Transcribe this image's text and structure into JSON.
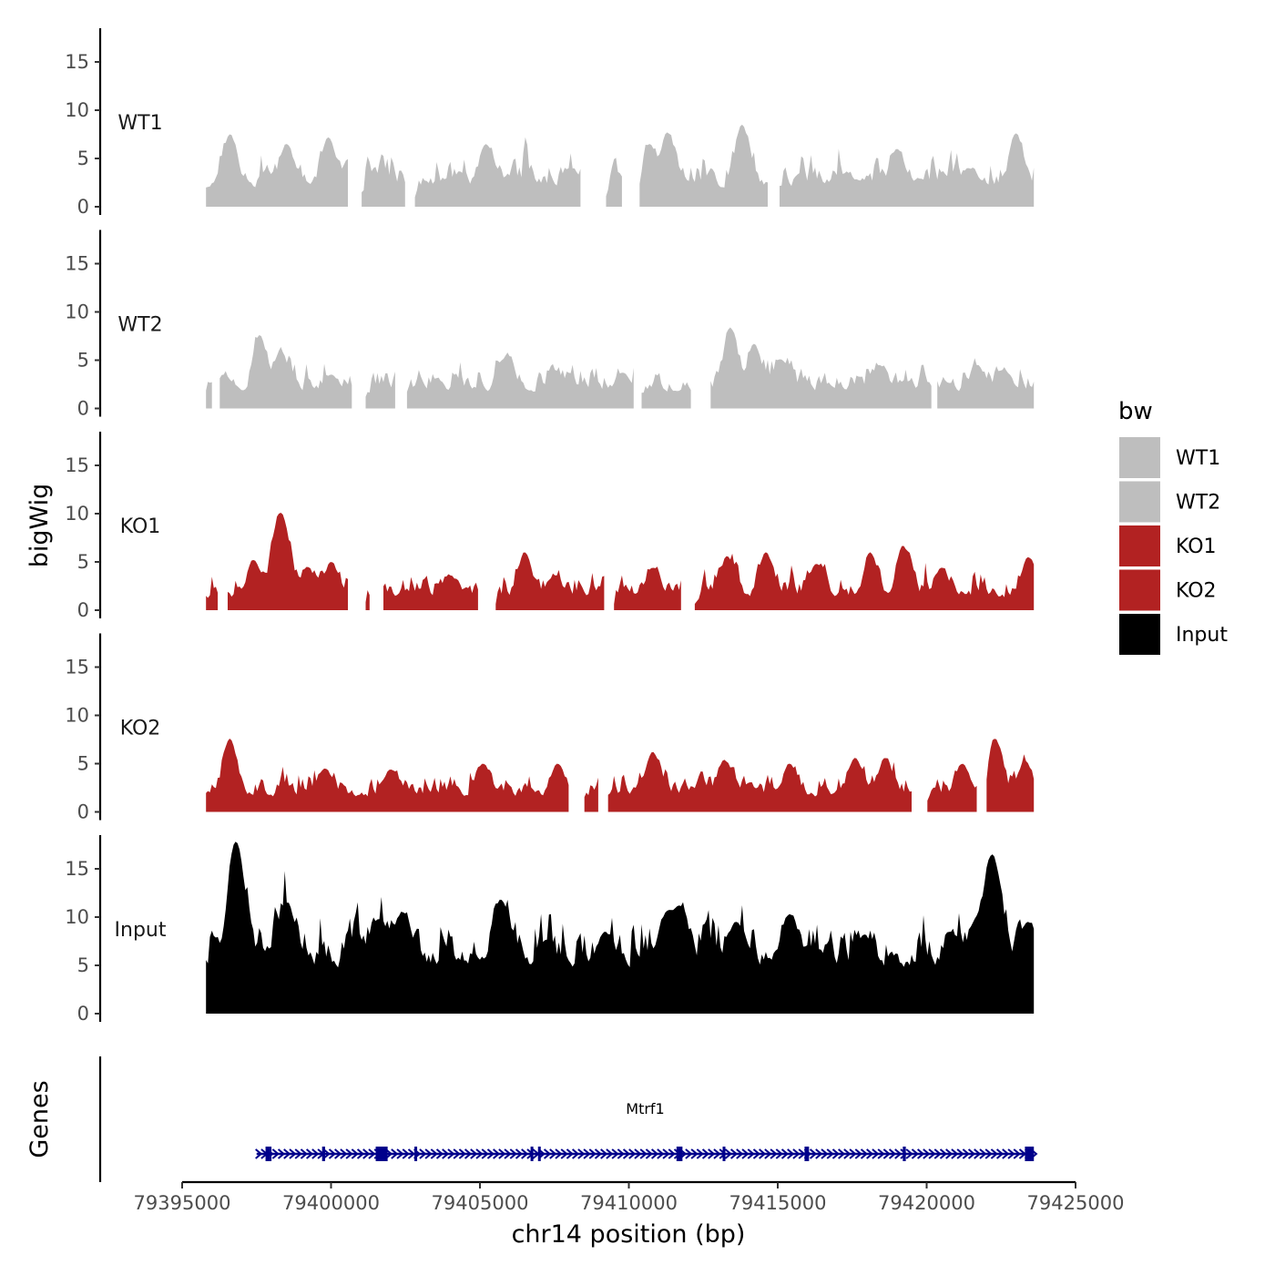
{
  "chart_data": {
    "type": "area",
    "chromosome": "chr14",
    "xlabel": "chr14 position (bp)",
    "ylabel_signal": "bigWig",
    "ylabel_genes": "Genes",
    "xlim": [
      79395000,
      79425000
    ],
    "x_ticks": [
      79395000,
      79400000,
      79405000,
      79410000,
      79415000,
      79420000,
      79425000
    ],
    "x_tick_labels": [
      "79395000",
      "79400000",
      "79405000",
      "79410000",
      "79415000",
      "79420000",
      "79425000"
    ],
    "ylim": [
      0,
      18.5
    ],
    "y_ticks": [
      0,
      5,
      10,
      15
    ],
    "y_tick_labels": [
      "0",
      "5",
      "10",
      "15"
    ],
    "x_range_data": [
      79395800,
      79423600
    ],
    "legend": {
      "title": "bw",
      "entries": [
        {
          "label": "WT1",
          "color": "#bebebe"
        },
        {
          "label": "WT2",
          "color": "#bebebe"
        },
        {
          "label": "KO1",
          "color": "#b22222"
        },
        {
          "label": "KO2",
          "color": "#b22222"
        },
        {
          "label": "Input",
          "color": "#000000"
        }
      ]
    },
    "series": [
      {
        "name": "WT1",
        "color": "#bebebe",
        "seed": 11,
        "base": 1.8,
        "noise": 2.4,
        "max": 8.5,
        "peaks": [
          [
            79396600,
            7.5
          ],
          [
            79398500,
            6.5
          ],
          [
            79399900,
            7.2
          ],
          [
            79405200,
            6.5
          ],
          [
            79408000,
            4.0
          ],
          [
            79410700,
            6.5
          ],
          [
            79411300,
            7.7
          ],
          [
            79413800,
            8.5
          ],
          [
            79417300,
            3.5
          ],
          [
            79419000,
            6.0
          ],
          [
            79421400,
            4.0
          ],
          [
            79423000,
            7.6
          ]
        ],
        "gaps": [
          [
            79400600,
            79401000
          ],
          [
            79402500,
            79402800
          ],
          [
            79408400,
            79409200
          ],
          [
            79409800,
            79410300
          ],
          [
            79414700,
            79415000
          ]
        ]
      },
      {
        "name": "WT2",
        "color": "#bebebe",
        "seed": 23,
        "base": 1.6,
        "noise": 2.3,
        "max": 8.4,
        "peaks": [
          [
            79396400,
            3.5
          ],
          [
            79397600,
            7.6
          ],
          [
            79398300,
            6.0
          ],
          [
            79400000,
            3.5
          ],
          [
            79405900,
            5.5
          ],
          [
            79407500,
            4.0
          ],
          [
            79409800,
            3.7
          ],
          [
            79413400,
            8.4
          ],
          [
            79414200,
            6.7
          ],
          [
            79415100,
            5.1
          ],
          [
            79418400,
            4.5
          ],
          [
            79421700,
            4.5
          ],
          [
            79422600,
            4.0
          ]
        ],
        "gaps": [
          [
            79396000,
            79396200
          ],
          [
            79400700,
            79401100
          ],
          [
            79402200,
            79402500
          ],
          [
            79410200,
            79410400
          ],
          [
            79412100,
            79412700
          ],
          [
            79420200,
            79420300
          ]
        ]
      },
      {
        "name": "KO1",
        "color": "#b22222",
        "seed": 37,
        "base": 1.1,
        "noise": 2.0,
        "max": 10.1,
        "peaks": [
          [
            79397400,
            5.2
          ],
          [
            79398300,
            10.1
          ],
          [
            79399200,
            4.5
          ],
          [
            79400000,
            5.0
          ],
          [
            79404000,
            3.6
          ],
          [
            79406500,
            6.0
          ],
          [
            79407500,
            3.6
          ],
          [
            79410800,
            4.4
          ],
          [
            79413300,
            5.6
          ],
          [
            79414600,
            6.0
          ],
          [
            79416300,
            4.8
          ],
          [
            79418100,
            6.0
          ],
          [
            79419200,
            6.7
          ],
          [
            79420500,
            4.4
          ],
          [
            79423400,
            5.5
          ]
        ],
        "gaps": [
          [
            79396200,
            79396500
          ],
          [
            79400600,
            79401100
          ],
          [
            79401300,
            79401700
          ],
          [
            79405000,
            79405500
          ],
          [
            79409200,
            79409500
          ],
          [
            79411800,
            79412200
          ]
        ]
      },
      {
        "name": "KO2",
        "color": "#b22222",
        "seed": 51,
        "base": 1.4,
        "noise": 2.0,
        "max": 7.6,
        "peaks": [
          [
            79396600,
            7.6
          ],
          [
            79399800,
            4.5
          ],
          [
            79402000,
            4.4
          ],
          [
            79405100,
            5.0
          ],
          [
            79407600,
            5.0
          ],
          [
            79410800,
            6.2
          ],
          [
            79413200,
            5.4
          ],
          [
            79415400,
            5.0
          ],
          [
            79417600,
            5.6
          ],
          [
            79418600,
            5.6
          ],
          [
            79421200,
            5.0
          ],
          [
            79422300,
            7.6
          ],
          [
            79423300,
            5.3
          ]
        ],
        "gaps": [
          [
            79408000,
            79408500
          ],
          [
            79409000,
            79409300
          ],
          [
            79419500,
            79420000
          ],
          [
            79421700,
            79422000
          ]
        ]
      },
      {
        "name": "Input",
        "color": "#000000",
        "seed": 7,
        "base": 4.5,
        "noise": 4.0,
        "max": 17.8,
        "peaks": [
          [
            79396800,
            17.8
          ],
          [
            79398500,
            11.5
          ],
          [
            79401600,
            9.8
          ],
          [
            79402400,
            10.5
          ],
          [
            79405700,
            11.8
          ],
          [
            79409200,
            8.5
          ],
          [
            79411300,
            10.5
          ],
          [
            79411700,
            11.2
          ],
          [
            79413600,
            9.5
          ],
          [
            79415400,
            10.3
          ],
          [
            79417900,
            8.2
          ],
          [
            79420800,
            8.5
          ],
          [
            79421700,
            9.5
          ],
          [
            79422200,
            16.5
          ],
          [
            79423400,
            9.5
          ]
        ],
        "gaps": []
      }
    ],
    "gene": {
      "name": "Mtrf1",
      "start": 79397500,
      "end": 79423600,
      "strand": "+",
      "color": "#00008b",
      "exons": [
        [
          79397800,
          79398000
        ],
        [
          79399700,
          79399800
        ],
        [
          79401500,
          79401900
        ],
        [
          79402800,
          79402850
        ],
        [
          79406700,
          79406750
        ],
        [
          79406950,
          79407000
        ],
        [
          79411600,
          79411800
        ],
        [
          79413150,
          79413200
        ],
        [
          79415900,
          79416050
        ],
        [
          79419200,
          79419300
        ],
        [
          79423300,
          79423600
        ]
      ]
    }
  }
}
